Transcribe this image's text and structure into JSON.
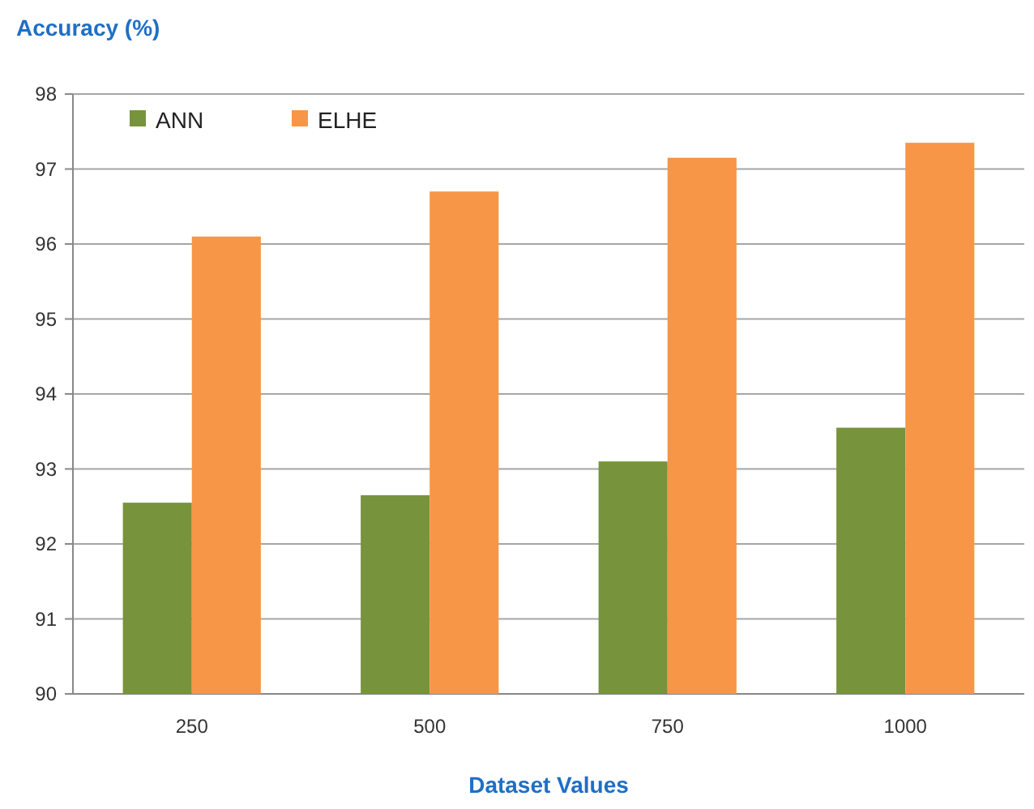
{
  "chart_data": {
    "type": "bar",
    "title": "Accuracy (%)",
    "xlabel": "Dataset Values",
    "categories": [
      "250",
      "500",
      "750",
      "1000"
    ],
    "series": [
      {
        "name": "ANN",
        "color": "#77933c",
        "values": [
          92.55,
          92.65,
          93.1,
          93.55
        ]
      },
      {
        "name": "ELHE",
        "color": "#f79646",
        "values": [
          96.1,
          96.7,
          97.15,
          97.35
        ]
      }
    ],
    "ylim": [
      90,
      98
    ],
    "yticks": [
      90,
      91,
      92,
      93,
      94,
      95,
      96,
      97,
      98
    ],
    "grid": "y",
    "legend": "top left"
  }
}
